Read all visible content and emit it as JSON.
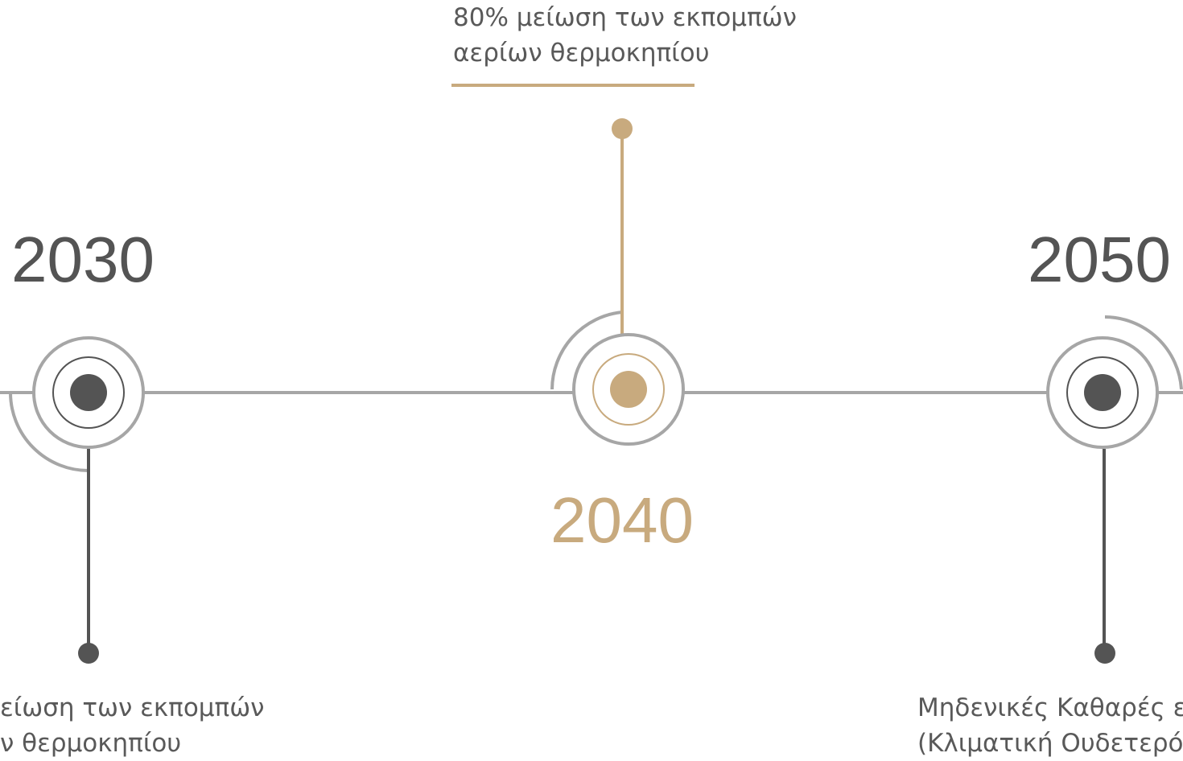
{
  "colors": {
    "accent": "#C8AA7E",
    "dark": "#545454",
    "ring": "#A6A6A6",
    "text": "#595959"
  },
  "milestones": [
    {
      "year": "2030",
      "description_lines": [
        "είωση των εκπομπών",
        "ν θερμοκηπίου"
      ]
    },
    {
      "year": "2040",
      "description_lines": [
        "80% μείωση των εκπομπών",
        "αερίων θερμοκηπίου"
      ]
    },
    {
      "year": "2050",
      "description_lines": [
        "Μηδενικές Καθαρές ε",
        "(Κλιματική Ουδετερότ"
      ]
    }
  ]
}
